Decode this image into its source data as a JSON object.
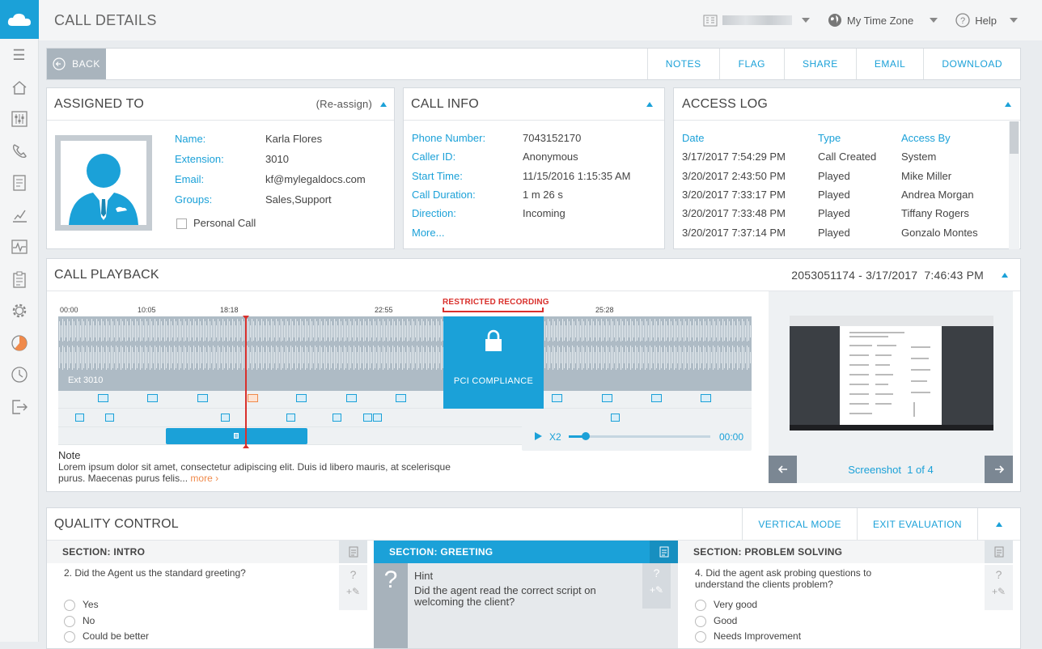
{
  "app": {
    "title": "CALL DETAILS"
  },
  "topbar": {
    "timezone": "My Time Zone",
    "help": "Help"
  },
  "actions": {
    "back": "BACK",
    "items": [
      "NOTES",
      "FLAG",
      "SHARE",
      "EMAIL",
      "DOWNLOAD"
    ]
  },
  "assigned": {
    "title": "ASSIGNED TO",
    "reassign": "(Re-assign)",
    "labels": {
      "name": "Name:",
      "extension": "Extension:",
      "email": "Email:",
      "groups": "Groups:"
    },
    "values": {
      "name": "Karla Flores",
      "extension": "3010",
      "email": "kf@mylegaldocs.com",
      "groups": "Sales,Support"
    },
    "personal_call": "Personal Call"
  },
  "callinfo": {
    "title": "CALL INFO",
    "labels": {
      "phone": "Phone Number:",
      "caller": "Caller ID:",
      "start": "Start Time:",
      "duration": "Call Duration:",
      "direction": "Direction:"
    },
    "values": {
      "phone": "7043152170",
      "caller": "Anonymous",
      "start": "11/15/2016 1:15:35 AM",
      "duration": "1 m 26 s",
      "direction": "Incoming"
    },
    "more": "More..."
  },
  "accesslog": {
    "title": "ACCESS LOG",
    "headers": [
      "Date",
      "Type",
      "Access By"
    ],
    "rows": [
      [
        "3/17/2017 7:54:29 PM",
        "Call Created",
        "System"
      ],
      [
        "3/20/2017 2:43:50 PM",
        "Played",
        "Mike Miller"
      ],
      [
        "3/20/2017 7:33:17 PM",
        "Played",
        "Andrea Morgan"
      ],
      [
        "3/20/2017 7:33:48 PM",
        "Played",
        "Tiffany Rogers"
      ],
      [
        "3/20/2017 7:37:14 PM",
        "Played",
        "Gonzalo Montes"
      ]
    ]
  },
  "playback": {
    "title": "CALL PLAYBACK",
    "call_ref": "2053051174 - 3/17/2017  7:46:43 PM",
    "ticks": [
      "00:00",
      "10:05",
      "18:18",
      "22:55",
      "25:28"
    ],
    "restricted": "RESTRICTED RECORDING",
    "pci": "PCI COMPLIANCE",
    "track_label": "Ext 3010",
    "note_title": "Note",
    "note_text": "Lorem ipsum dolor sit amet, consectetur adipiscing elit. Duis id libero mauris, at scelerisque purus. Maecenas purus felis...",
    "more": "more ›",
    "speed": "X2",
    "time": "00:00",
    "position": 0.12,
    "screenshot_label": "Screenshot  1 of 4"
  },
  "qc": {
    "title": "QUALITY CONTROL",
    "vertical_mode": "VERTICAL MODE",
    "exit": "EXIT EVALUATION",
    "sections": [
      {
        "title": "SECTION: INTRO",
        "question": "2. Did the Agent us the standard greeting?",
        "options": [
          "Yes",
          "No",
          "Could be better"
        ]
      },
      {
        "title": "SECTION: GREETING",
        "hint_title": "Hint",
        "hint_text": "Did the agent read the correct script on welcoming the client?"
      },
      {
        "title": "SECTION: PROBLEM SOLVING",
        "question": "4. Did the agent ask probing questions to understand the clients problem?",
        "options": [
          "Very good",
          "Good",
          "Needs Improvement"
        ]
      }
    ]
  },
  "colors": {
    "accent": "#1ba1d8",
    "restricted": "#d9302c",
    "marker_active": "#f08a4b"
  }
}
